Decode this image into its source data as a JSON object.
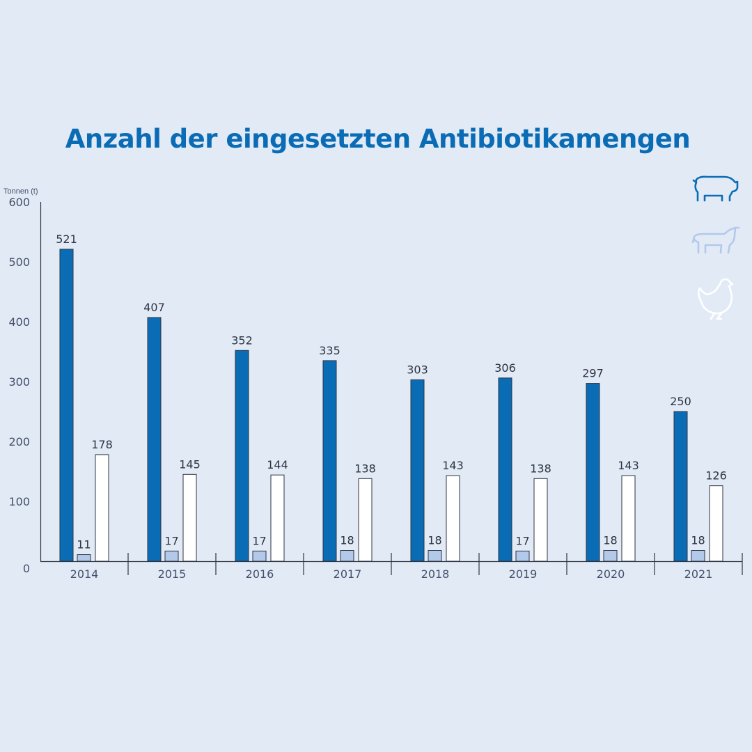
{
  "chart_data": {
    "type": "bar",
    "title": "Anzahl der eingesetzten Antibiotikamengen",
    "ylabel": "Tonnen (t)",
    "ylim": [
      0,
      600
    ],
    "yticks": [
      "0",
      "100",
      "200",
      "300",
      "400",
      "500",
      "600"
    ],
    "categories": [
      "2014",
      "2015",
      "2016",
      "2017",
      "2018",
      "2019",
      "2020",
      "2021"
    ],
    "series": [
      {
        "icon": "pig-icon",
        "color": "#0b6cb6",
        "values": [
          521,
          407,
          352,
          335,
          303,
          306,
          297,
          250
        ]
      },
      {
        "icon": "cow-icon",
        "color": "#b3c9ea",
        "values": [
          11,
          17,
          17,
          18,
          18,
          17,
          18,
          18
        ]
      },
      {
        "icon": "chicken-icon",
        "color": "#ffffff",
        "values": [
          178,
          145,
          144,
          138,
          143,
          138,
          143,
          126
        ]
      }
    ],
    "grid": false,
    "legend": "right (animal icons)"
  }
}
